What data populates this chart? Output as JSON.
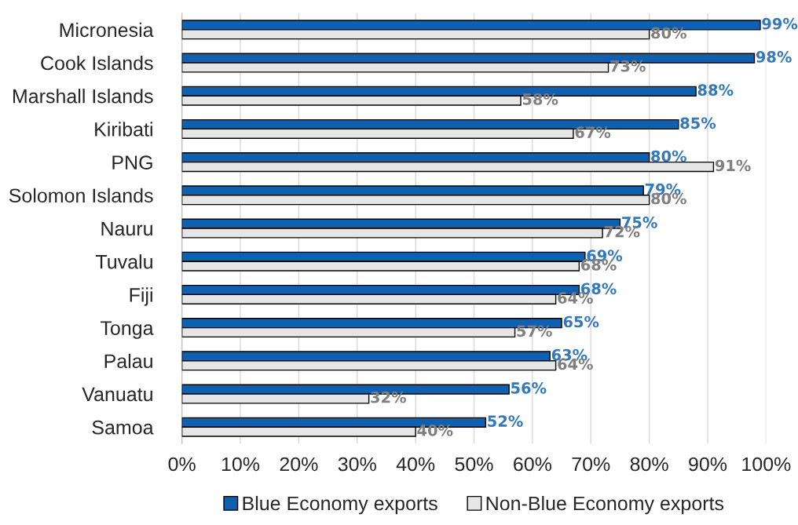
{
  "chart_data": {
    "type": "bar",
    "orientation": "horizontal",
    "categories": [
      "Micronesia",
      "Cook Islands",
      "Marshall Islands",
      "Kiribati",
      "PNG",
      "Solomon Islands",
      "Nauru",
      "Tuvalu",
      "Fiji",
      "Tonga",
      "Palau",
      "Vanuatu",
      "Samoa"
    ],
    "series": [
      {
        "name": "Blue Economy exports",
        "color": "#1060b0",
        "values": [
          99,
          98,
          88,
          85,
          80,
          79,
          75,
          69,
          68,
          65,
          63,
          56,
          52
        ],
        "value_labels": [
          "99%",
          "98%",
          "88%",
          "85%",
          "80%",
          "79%",
          "75%",
          "69%",
          "68%",
          "65%",
          "63%",
          "56%",
          "52%"
        ]
      },
      {
        "name": "Non-Blue Economy exports",
        "color": "#e6e6e6",
        "values": [
          80,
          73,
          58,
          67,
          91,
          80,
          72,
          68,
          64,
          57,
          64,
          32,
          40
        ],
        "value_labels": [
          "80%",
          "73%",
          "58%",
          "67%",
          "91%",
          "80%",
          "72%",
          "68%",
          "64%",
          "57%",
          "64%",
          "32%",
          "40%"
        ]
      }
    ],
    "xlim": [
      0,
      100
    ],
    "xticks": [
      {
        "value": 0,
        "label": "0%"
      },
      {
        "value": 10,
        "label": "10%"
      },
      {
        "value": 20,
        "label": "20%"
      },
      {
        "value": 30,
        "label": "30%"
      },
      {
        "value": 40,
        "label": "40%"
      },
      {
        "value": 50,
        "label": "50%"
      },
      {
        "value": 60,
        "label": "60%"
      },
      {
        "value": 70,
        "label": "70%"
      },
      {
        "value": 80,
        "label": "80%"
      },
      {
        "value": 90,
        "label": "90%"
      },
      {
        "value": 100,
        "label": "100%"
      }
    ],
    "grid": "x",
    "legend": "bottom"
  }
}
